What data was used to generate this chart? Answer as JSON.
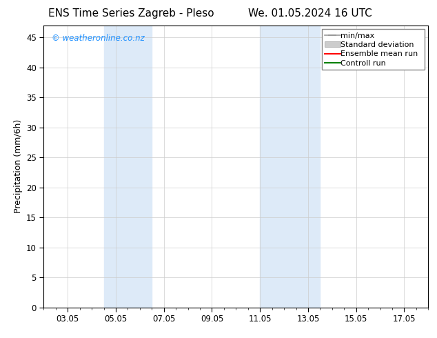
{
  "title_left": "ENS Time Series Zagreb - Pleso",
  "title_right": "We. 01.05.2024 16 UTC",
  "ylabel": "Precipitation (mm/6h)",
  "xtick_labels": [
    "03.05",
    "05.05",
    "07.05",
    "09.05",
    "11.05",
    "13.05",
    "15.05",
    "17.05"
  ],
  "xtick_positions": [
    3,
    5,
    7,
    9,
    11,
    13,
    15,
    17
  ],
  "xlim": [
    2.0,
    18.0
  ],
  "ylim": [
    0,
    47
  ],
  "ytick_positions": [
    0,
    5,
    10,
    15,
    20,
    25,
    30,
    35,
    40,
    45
  ],
  "ytick_labels": [
    "0",
    "5",
    "10",
    "15",
    "20",
    "25",
    "30",
    "35",
    "40",
    "45"
  ],
  "shaded_bands": [
    {
      "x_start": 4.5,
      "x_end": 6.5,
      "color": "#ddeaf8"
    },
    {
      "x_start": 11.0,
      "x_end": 13.5,
      "color": "#ddeaf8"
    }
  ],
  "legend_entries": [
    {
      "label": "min/max",
      "color": "#aaaaaa",
      "style": "errorbar"
    },
    {
      "label": "Standard deviation",
      "color": "#cccccc",
      "style": "band"
    },
    {
      "label": "Ensemble mean run",
      "color": "#ff0000",
      "style": "line"
    },
    {
      "label": "Controll run",
      "color": "#008000",
      "style": "line"
    }
  ],
  "watermark_text": "© weatheronline.co.nz",
  "watermark_color": "#1E90FF",
  "background_color": "#ffffff",
  "plot_bg_color": "#ffffff",
  "grid_color": "#cccccc",
  "title_fontsize": 11,
  "ylabel_fontsize": 9,
  "tick_fontsize": 8.5,
  "legend_fontsize": 8,
  "watermark_fontsize": 8.5
}
